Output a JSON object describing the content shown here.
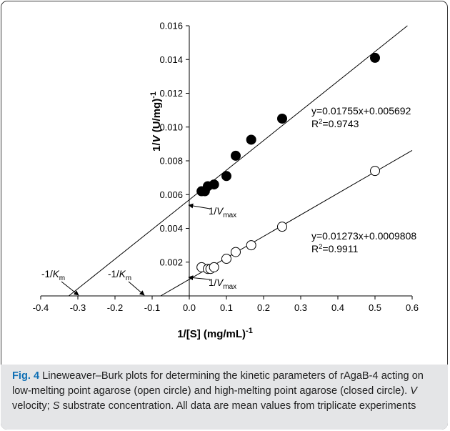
{
  "chart_data": {
    "type": "scatter",
    "xlabel_main": "1/[S] (mg/mL)",
    "xlabel_exp": "-1",
    "ylabel_prefix": "1/",
    "ylabel_italic": "V",
    "ylabel_units": " (U/mg)",
    "ylabel_exp": "-1",
    "xlim": [
      -0.4,
      0.6
    ],
    "ylim": [
      0,
      0.016
    ],
    "x_ticks": [
      -0.4,
      -0.3,
      -0.2,
      -0.1,
      0.0,
      0.1,
      0.2,
      0.3,
      0.4,
      0.5,
      0.6
    ],
    "x_tick_labels": [
      "-0.4",
      "-0.3",
      "-0.2",
      "-0.1",
      "0.0",
      "0.1",
      "0.2",
      "0.3",
      "0.4",
      "0.5",
      "0.6"
    ],
    "y_ticks": [
      0.002,
      0.004,
      0.006,
      0.008,
      0.01,
      0.012,
      0.014,
      0.016
    ],
    "y_tick_labels": [
      "0.002",
      "0.004",
      "0.006",
      "0.008",
      "0.010",
      "0.012",
      "0.014",
      "0.016"
    ],
    "grid": false,
    "series": [
      {
        "marker": "filled-circle",
        "x": [
          0.033,
          0.042,
          0.05,
          0.0667,
          0.1,
          0.125,
          0.1667,
          0.25,
          0.5
        ],
        "y": [
          0.0062,
          0.0062,
          0.0065,
          0.0066,
          0.0071,
          0.0083,
          0.00925,
          0.0105,
          0.0141
        ],
        "fit": {
          "slope": 0.01755,
          "intercept": 0.005692
        },
        "equation": "y=0.01755x+0.005692",
        "r2_label": "R",
        "r2_sup": "2",
        "r2_value": "=0.9743"
      },
      {
        "marker": "open-circle",
        "x": [
          0.033,
          0.05,
          0.0571,
          0.0667,
          0.1,
          0.125,
          0.1667,
          0.25,
          0.5
        ],
        "y": [
          0.0017,
          0.0016,
          0.0016,
          0.0017,
          0.0022,
          0.0026,
          0.003,
          0.0041,
          0.0074
        ],
        "fit": {
          "slope": 0.01273,
          "intercept": 0.0009808
        },
        "equation": "y=0.01273x+0.0009808",
        "r2_label": "R",
        "r2_sup": "2",
        "r2_value": "=0.9911"
      }
    ],
    "annotations": {
      "vmax_prefix": "1/",
      "vmax_italic": "V",
      "vmax_sub": "max",
      "km_prefix": "-1/",
      "km_italic": "K",
      "km_sub": "m"
    }
  },
  "caption": {
    "fig_label": "Fig. 4",
    "text_1": "  Lineweaver–Burk plots for determining the kinetic parameters of rAgaB-4 acting on low-melting point agarose (open circle) and high-melting point agarose (closed circle). ",
    "v_symbol": "V",
    "text_2": " velocity; ",
    "s_symbol": "S",
    "text_3": " substrate concentration. All data are mean values from triplicate experiments"
  },
  "colors": {
    "fig_label": "#0f6fb4",
    "caption_bg": "#e4e5e7",
    "frame_border": "#3a3a3a"
  }
}
